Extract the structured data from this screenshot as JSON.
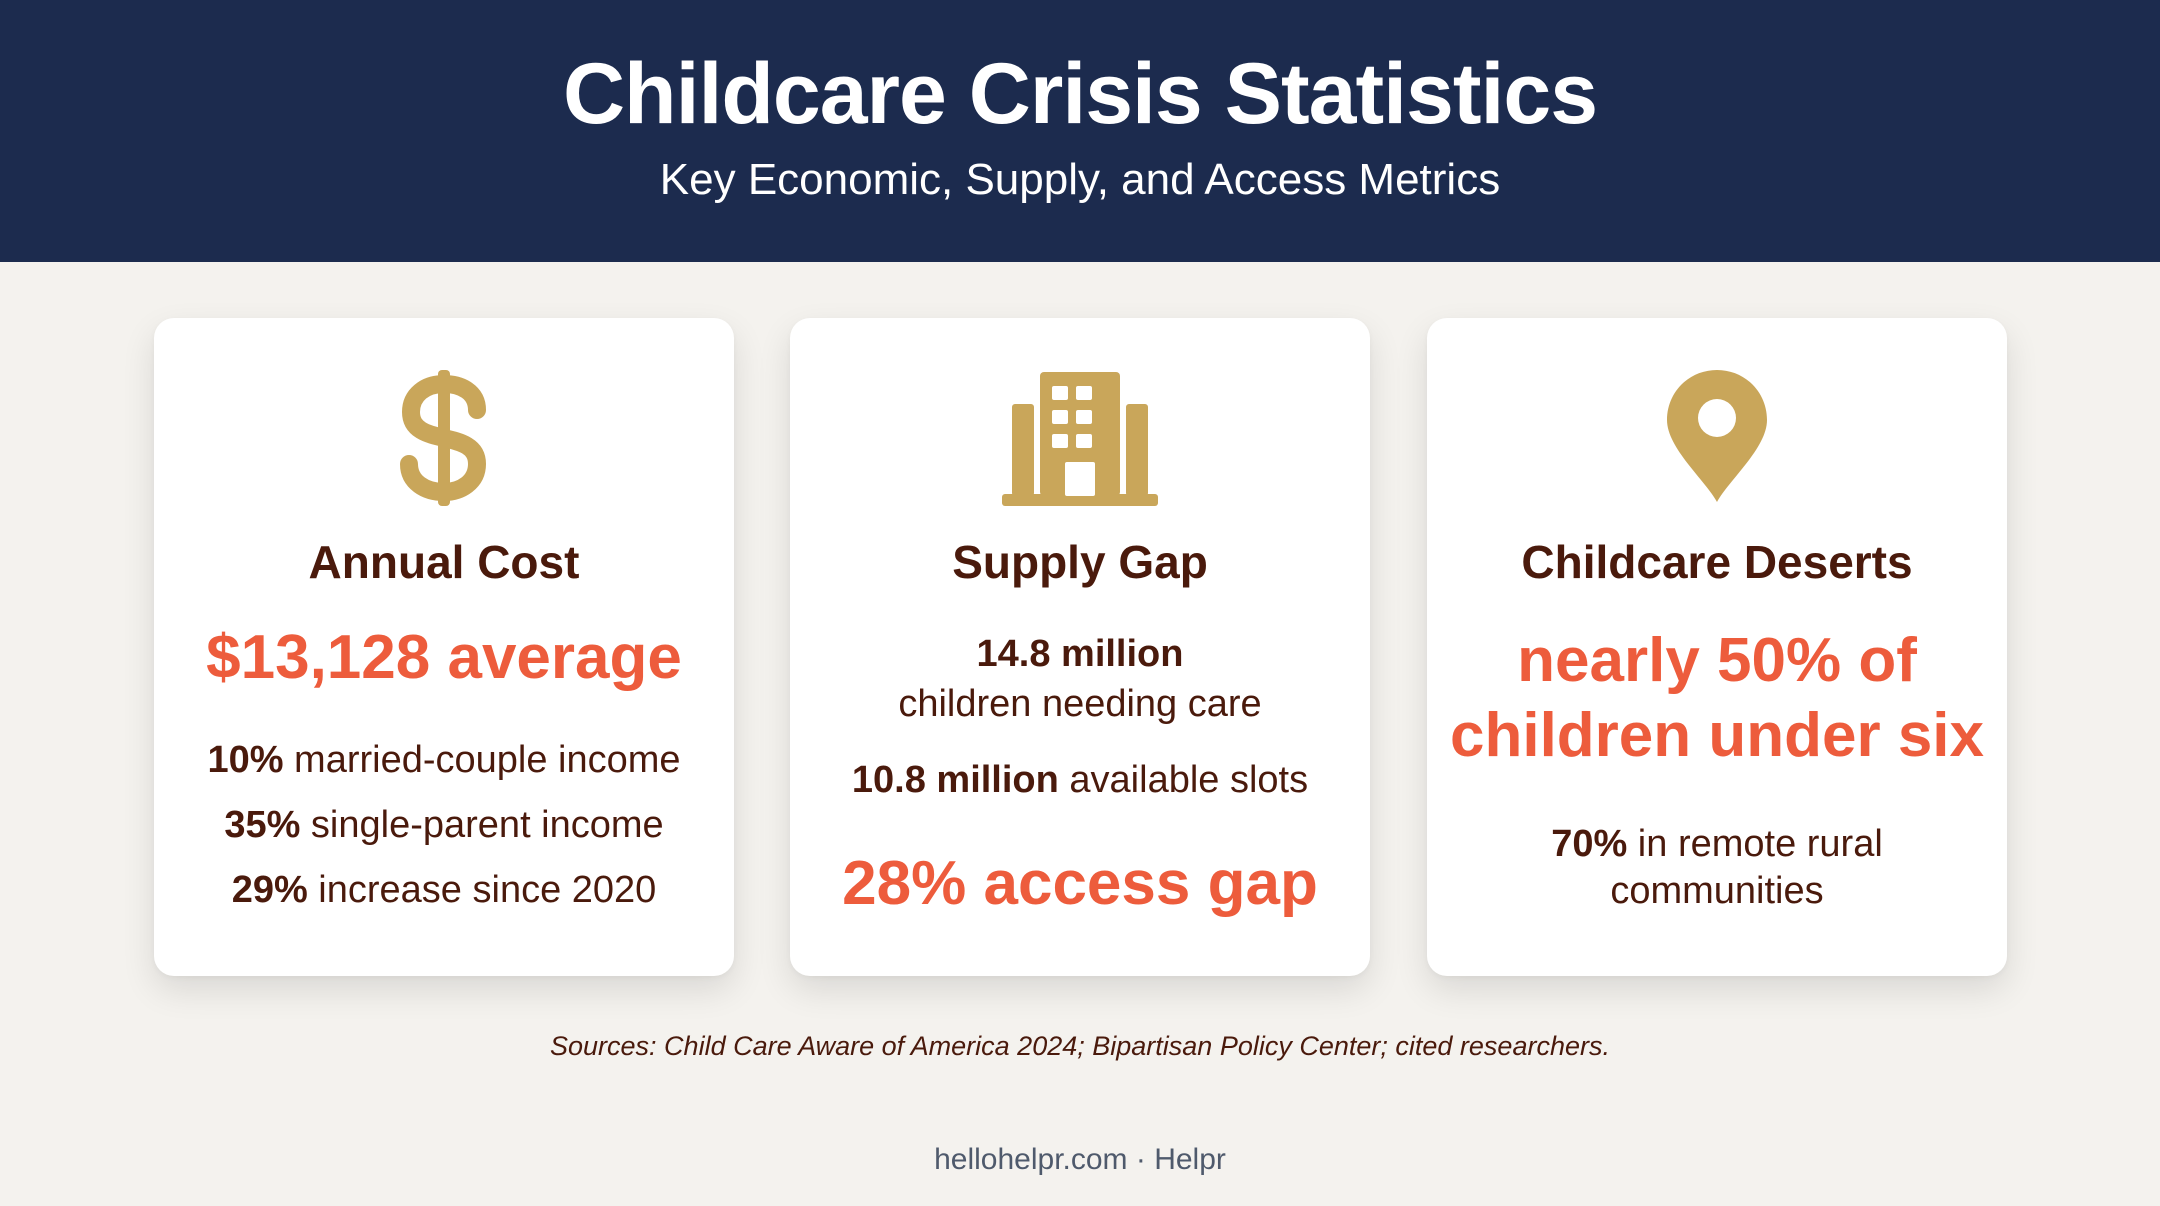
{
  "header": {
    "title": "Childcare Crisis Statistics",
    "subtitle": "Key Economic, Supply, and Access Metrics"
  },
  "colors": {
    "header_bg": "#1c2b4e",
    "page_bg": "#f4f2ee",
    "accent": "#ed5c3c",
    "icon_gold": "#c9a65a",
    "text_dark": "#4a1a0c"
  },
  "cards": [
    {
      "icon": "dollar-sign-icon",
      "title": "Annual Cost",
      "highlight": "$13,128 average",
      "stats": [
        {
          "value": "10%",
          "text": " married-couple income"
        },
        {
          "value": "35%",
          "text": " single-parent income"
        },
        {
          "value": "29%",
          "text": " increase since 2020"
        }
      ]
    },
    {
      "icon": "building-icon",
      "title": "Supply Gap",
      "needing_value": "14.8 million",
      "needing_text": "children needing care",
      "slots_value": "10.8 million",
      "slots_text": " available slots",
      "highlight": "28% access gap"
    },
    {
      "icon": "map-pin-icon",
      "title": "Childcare Deserts",
      "highlight_line1": "nearly 50% of",
      "highlight_line2": "children under six",
      "rural_value": "70%",
      "rural_text_1": " in remote rural",
      "rural_text_2": "communities"
    }
  ],
  "sources": "Sources: Child Care Aware of America 2024; Bipartisan Policy Center; cited researchers.",
  "footer": "hellohelpr.com · Helpr"
}
